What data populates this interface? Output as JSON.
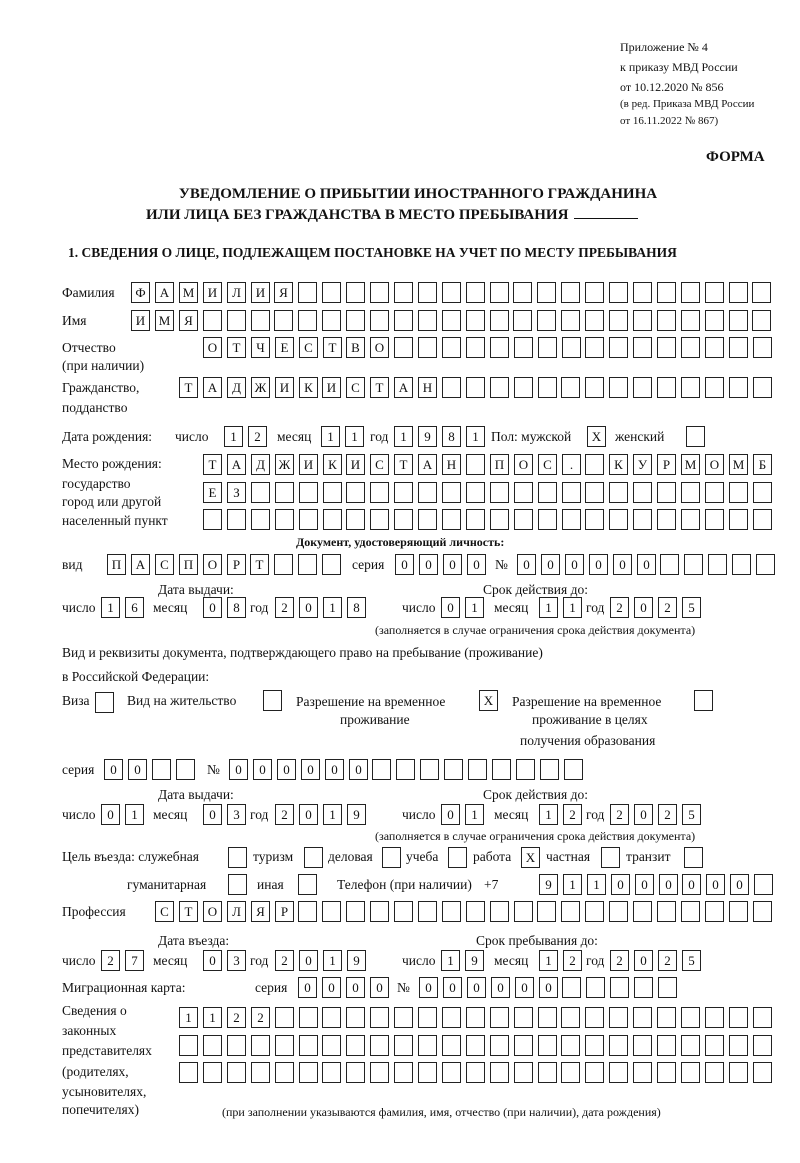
{
  "header": {
    "line1": "Приложение № 4",
    "line2": "к приказу МВД России",
    "line3": "от 10.12.2020 № 856",
    "line4": "(в ред. Приказа МВД России",
    "line5": "от 16.11.2022 № 867)",
    "form_label": "ФОРМА",
    "title1": "УВЕДОМЛЕНИЕ О ПРИБЫТИИ ИНОСТРАННОГО ГРАЖДАНИНА",
    "title2": "ИЛИ ЛИЦА БЕЗ ГРАЖДАНСТВА В МЕСТО ПРЕБЫВАНИЯ",
    "section1": "1. СВЕДЕНИЯ О ЛИЦЕ, ПОДЛЕЖАЩЕМ ПОСТАНОВКЕ НА УЧЕТ ПО МЕСТУ ПРЕБЫВАНИЯ"
  },
  "labels": {
    "surname": "Фамилия",
    "name": "Имя",
    "patronymic": "Отчество",
    "patronymic2": "(при наличии)",
    "citizenship": "Гражданство,",
    "citizenship2": "подданство",
    "birth_date": "Дата рождения:",
    "day": "число",
    "month": "месяц",
    "year": "год",
    "sex": "Пол: мужской",
    "female": "женский",
    "birth_place": "Место рождения:",
    "birth_place2": "государство",
    "birth_place3": "город или другой",
    "birth_place4": "населенный пункт",
    "id_doc": "Документ, удостоверяющий личность:",
    "kind": "вид",
    "series": "серия",
    "number": "№",
    "issue_date": "Дата выдачи:",
    "valid_until": "Срок действия до:",
    "validity_note": "(заполняется в случае ограничения срока действия документа)",
    "right_doc1": "Вид и реквизиты документа, подтверждающего право на пребывание (проживание)",
    "right_doc2": "в Российской Федерации:",
    "visa": "Виза",
    "residence": "Вид на жительство",
    "trp1": "Разрешение на временное",
    "trp2": "проживание",
    "trpe1": "Разрешение на временное",
    "trpe2": "проживание в целях",
    "trpe3": "получения образования",
    "purpose": "Цель въезда: служебная",
    "tourism": "туризм",
    "business": "деловая",
    "study": "учеба",
    "work": "работа",
    "private": "частная",
    "transit": "транзит",
    "humanitarian": "гуманитарная",
    "other": "иная",
    "phone": "Телефон (при наличии)",
    "phone_prefix": "+7",
    "profession": "Профессия",
    "entry_date": "Дата въезда:",
    "stay_until": "Срок пребывания до:",
    "migration_card": "Миграционная карта:",
    "reps1": "Сведения о",
    "reps2": "законных",
    "reps3": "представителях",
    "reps4": "(родителях,",
    "reps5": "усыновителях,",
    "reps6": "попечителях)",
    "reps_note": "(при заполнении указываются фамилия, имя, отчество (при наличии), дата рождения)"
  },
  "values": {
    "surname": "ФАМИЛИЯ",
    "name": "ИМЯ",
    "patronymic": "ОТЧЕСТВО",
    "citizenship": "ТАДЖИКИСТАН",
    "birth_day": "12",
    "birth_month": "11",
    "birth_year": "1981",
    "sex_male": "X",
    "sex_female": "",
    "birth_place1": "ТАДЖИКИСТАН ПОС. КУРМОМБ",
    "birth_place2": "ЕЗ",
    "birth_place3": "",
    "id_kind": "ПАСПОРТ",
    "id_series": "0000",
    "id_number": "000000",
    "id_issue_day": "16",
    "id_issue_month": "08",
    "id_issue_year": "2018",
    "id_valid_day": "01",
    "id_valid_month": "11",
    "id_valid_year": "2025",
    "visa": "",
    "residence": "",
    "trp": "X",
    "trpe": "",
    "rd_series": "00",
    "rd_number": "000000",
    "rd_issue_day": "01",
    "rd_issue_month": "03",
    "rd_issue_year": "2019",
    "rd_valid_day": "01",
    "rd_valid_month": "12",
    "rd_valid_year": "2025",
    "p_official": "",
    "p_tourism": "",
    "p_business": "",
    "p_study": "",
    "p_work": "X",
    "p_private": "",
    "p_transit": "",
    "p_humanitarian": "",
    "p_other": "",
    "phone": "911000000",
    "profession": "СТОЛЯР",
    "entry_day": "27",
    "entry_month": "03",
    "entry_year": "2019",
    "stay_day": "19",
    "stay_month": "12",
    "stay_year": "2025",
    "mc_series": "0000",
    "mc_number": "000000",
    "reps1": "1122",
    "reps2": "",
    "reps3": ""
  }
}
